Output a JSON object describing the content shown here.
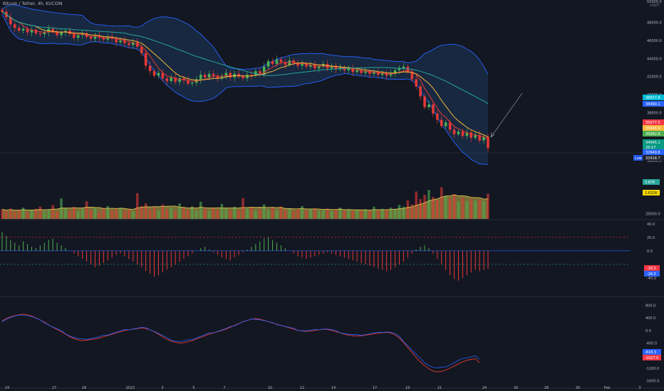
{
  "header": {
    "symbol": "Bitcoin / Tether, 4h, KUCOIN",
    "currency": "USDT"
  },
  "colors": {
    "background": "#131722",
    "up": "#4caf50",
    "down": "#e53935",
    "bb_band": "#2962ff",
    "bb_fill": "#1c3d66",
    "ma_fast": "#e53935",
    "ma_mid": "#f5b93c",
    "ma_slow": "#26a69a",
    "volume_ma": "#c9b64a",
    "text": "#b2b5be",
    "grid": "#1e222d"
  },
  "price_axis": {
    "ticks": [
      "48000.0",
      "46000.0",
      "44000.0",
      "42000.0",
      "40000.0",
      "38000.0"
    ],
    "top_label": "50000.0",
    "bottom_label": "36000.0"
  },
  "price_tags": [
    {
      "text": "38657.6",
      "color": "#00bcd4"
    },
    {
      "text": "38490.1",
      "color": "#2962ff"
    },
    {
      "text": "35677.5",
      "color": "#f23645"
    },
    {
      "text": "35646.9",
      "color": "#f5b93c"
    },
    {
      "text": "35062.8",
      "color": "#4caf50"
    },
    {
      "text": "34045.1",
      "color": "#089981"
    },
    {
      "text": "26:57",
      "color": "#089981"
    },
    {
      "text": "32949.8",
      "color": "#2962ff"
    },
    {
      "text": "32918.7",
      "color": "#1e222d"
    }
  ],
  "low_label": "Low",
  "volume_axis": {
    "ticks": [
      "30000.0",
      "26000.0"
    ],
    "tags": [
      {
        "text": "3.87K",
        "color": "#26a69a"
      },
      {
        "text": "2.632K",
        "color": "#f5d800"
      }
    ]
  },
  "macd_axis": {
    "ticks": [
      "40.0",
      "20.0",
      "0.0",
      "-40.0"
    ],
    "tags": [
      {
        "text": "-26.5",
        "color": "#f23645"
      },
      {
        "text": "-26.5",
        "color": "#2962ff"
      }
    ]
  },
  "osc_axis": {
    "ticks": [
      "800.0",
      "400.0",
      "0.0",
      "-400.0",
      "-1200.0",
      "-1600.0"
    ],
    "tags": [
      {
        "text": "-818.3",
        "color": "#2962ff"
      },
      {
        "text": "-1027.0",
        "color": "#f23645"
      }
    ]
  },
  "time_axis": [
    "24",
    "27",
    "29",
    "2022",
    "3",
    "5",
    "7",
    "10",
    "12",
    "14",
    "17",
    "19",
    "21",
    "24",
    "26",
    "28",
    "30",
    "Feb",
    "3"
  ],
  "chart_data": {
    "type": "candlestick",
    "title": "",
    "price_ylim": [
      32500,
      50500
    ],
    "close_series": [
      49200,
      48600,
      47800,
      47400,
      47100,
      47300,
      46900,
      47200,
      46800,
      46700,
      46900,
      47300,
      47000,
      46600,
      46900,
      47100,
      46700,
      46300,
      46600,
      46800,
      46400,
      46200,
      46500,
      46300,
      46100,
      46400,
      46200,
      45800,
      46000,
      45700,
      45500,
      45800,
      45300,
      44600,
      43200,
      42600,
      42100,
      42400,
      41800,
      41500,
      41900,
      41400,
      41800,
      41600,
      41200,
      41300,
      41700,
      42200,
      41900,
      42300,
      42100,
      41800,
      42000,
      42400,
      41900,
      42300,
      42000,
      41800,
      42200,
      42100,
      42600,
      42300,
      43100,
      43700,
      43400,
      43900,
      43600,
      43300,
      43800,
      43500,
      43200,
      43400,
      43100,
      43300,
      42900,
      43100,
      43400,
      42900,
      43200,
      42800,
      43000,
      42700,
      42900,
      42500,
      42700,
      42400,
      42600,
      42300,
      42500,
      42200,
      42400,
      42100,
      42300,
      42700,
      42900,
      43100,
      42500,
      41700,
      40900,
      39800,
      38600,
      38900,
      37900,
      37200,
      36500,
      36900,
      36100,
      35600,
      35900,
      35400,
      35800,
      35200,
      35500,
      34900,
      35300,
      34045
    ],
    "volume_ylim": [
      25000,
      34000
    ],
    "volume_series": [
      26800,
      26500,
      26900,
      26400,
      26700,
      27100,
      26300,
      26600,
      26900,
      27300,
      26500,
      26800,
      27600,
      26400,
      28800,
      27000,
      26600,
      27200,
      26500,
      26900,
      28300,
      26700,
      27000,
      26300,
      26900,
      27400,
      26600,
      26800,
      27100,
      26500,
      26900,
      26400,
      29800,
      27400,
      27900,
      26800,
      27300,
      26600,
      27700,
      26800,
      27100,
      26500,
      27900,
      27000,
      26700,
      27300,
      26600,
      28200,
      26900,
      26500,
      27000,
      26700,
      27800,
      26900,
      26600,
      27300,
      26700,
      28900,
      26900,
      27200,
      26500,
      26800,
      27700,
      26700,
      27100,
      26600,
      27300,
      26700,
      26900,
      26500,
      26800,
      27400,
      26600,
      26800,
      27000,
      26500,
      26700,
      26900,
      26500,
      26700,
      27100,
      26500,
      26800,
      26500,
      26700,
      26500,
      26800,
      26500,
      27300,
      26600,
      26900,
      26700,
      27100,
      26900,
      27600,
      27300,
      28500,
      27700,
      30100,
      28700,
      29500,
      30400,
      29100,
      28600,
      30900,
      29300,
      28800,
      29600,
      28200,
      28900,
      28300,
      28700,
      28400,
      28600,
      28300,
      29700
    ],
    "macd_ylim": [
      -60,
      45
    ],
    "macd_hist": [
      28,
      22,
      16,
      12,
      8,
      14,
      10,
      6,
      4,
      8,
      12,
      16,
      18,
      12,
      8,
      4,
      0,
      -4,
      -8,
      -12,
      -16,
      -20,
      -24,
      -22,
      -18,
      -14,
      -10,
      -6,
      -4,
      -8,
      -12,
      -16,
      -20,
      -24,
      -30,
      -34,
      -38,
      -36,
      -32,
      -28,
      -24,
      -20,
      -16,
      -12,
      -8,
      -4,
      0,
      4,
      6,
      2,
      -2,
      -6,
      -10,
      -12,
      -14,
      -10,
      -6,
      -2,
      2,
      6,
      10,
      14,
      18,
      20,
      16,
      12,
      8,
      4,
      0,
      -4,
      -8,
      -10,
      -12,
      -10,
      -8,
      -6,
      -4,
      -2,
      -4,
      -6,
      -8,
      -10,
      -12,
      -14,
      -16,
      -18,
      -20,
      -22,
      -24,
      -26,
      -28,
      -30,
      -28,
      -24,
      -20,
      -16,
      -10,
      -4,
      2,
      6,
      8,
      4,
      -4,
      -12,
      -20,
      -28,
      -36,
      -42,
      -44,
      -40,
      -36,
      -32,
      -28,
      -30,
      -28,
      -26.5
    ],
    "osc_ylim": [
      -1700,
      900
    ],
    "osc_series": [
      300,
      380,
      430,
      470,
      500,
      520,
      500,
      460,
      400,
      330,
      260,
      180,
      100,
      30,
      -40,
      -120,
      -200,
      -260,
      -300,
      -320,
      -310,
      -290,
      -270,
      -240,
      -200,
      -160,
      -120,
      -80,
      -40,
      0,
      20,
      40,
      60,
      80,
      60,
      20,
      -40,
      -120,
      -200,
      -280,
      -340,
      -380,
      -400,
      -390,
      -360,
      -320,
      -270,
      -220,
      -170,
      -120,
      -80,
      -40,
      0,
      40,
      100,
      160,
      220,
      280,
      320,
      360,
      380,
      360,
      320,
      280,
      240,
      200,
      160,
      120,
      80,
      40,
      0,
      -20,
      -30,
      -20,
      0,
      20,
      40,
      30,
      0,
      -40,
      -80,
      -120,
      -150,
      -170,
      -180,
      -170,
      -150,
      -130,
      -110,
      -90,
      -70,
      -60,
      -80,
      -140,
      -240,
      -380,
      -540,
      -700,
      -860,
      -1000,
      -1120,
      -1220,
      -1290,
      -1320,
      -1300,
      -1260,
      -1200,
      -1130,
      -1060,
      -1000,
      -950,
      -920,
      -900,
      -1027
    ]
  }
}
